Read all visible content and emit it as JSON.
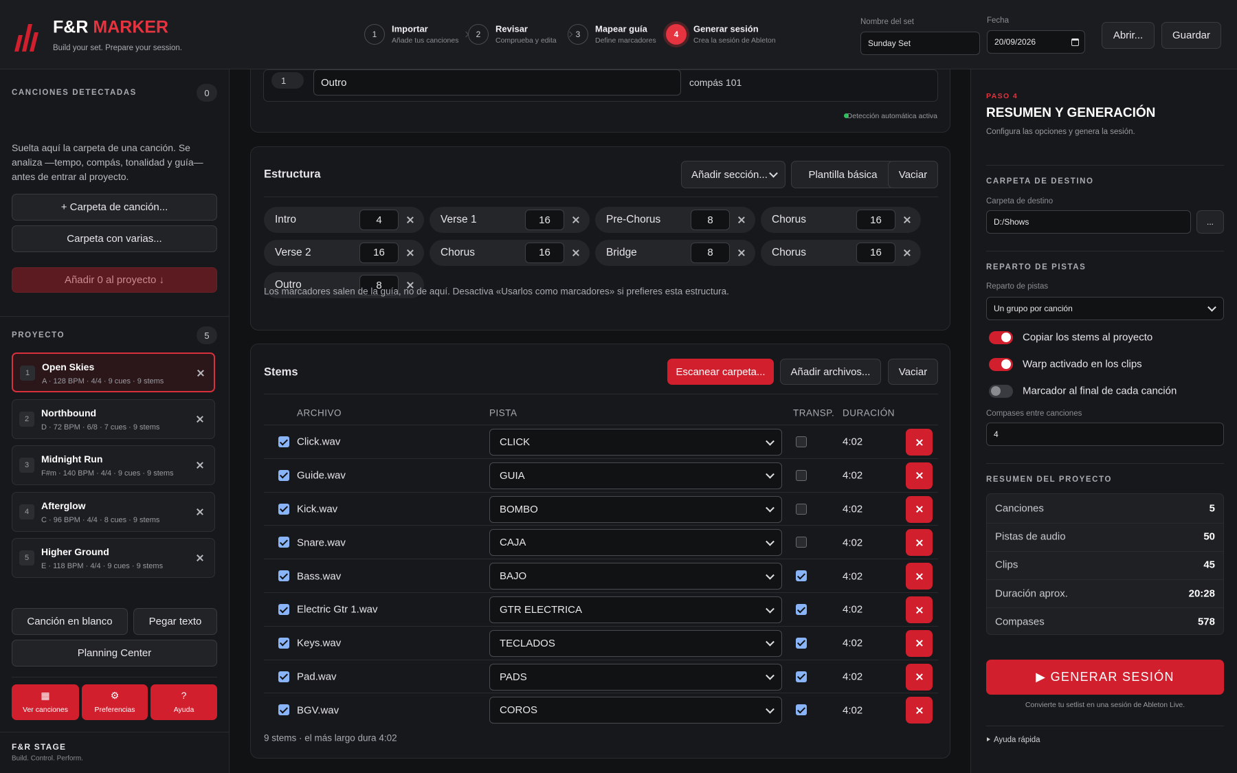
{
  "header": {
    "brand_a": "F&R",
    "brand_b": "MARKER",
    "tagline": "Build your set. Prepare your session.",
    "steps": [
      {
        "num": "1",
        "title": "Importar",
        "sub": "Añade tus canciones"
      },
      {
        "num": "2",
        "title": "Revisar",
        "sub": "Comprueba y edita"
      },
      {
        "num": "3",
        "title": "Mapear guía",
        "sub": "Define marcadores"
      },
      {
        "num": "4",
        "title": "Generar sesión",
        "sub": "Crea la sesión de Ableton"
      }
    ],
    "active_step": 3,
    "set_name_label": "Nombre del set",
    "set_name": "Sunday Set",
    "date_label": "Fecha",
    "date": "20/09/2026",
    "open": "Abrir...",
    "save": "Guardar"
  },
  "sidebar": {
    "detected_title": "CANCIONES DETECTADAS",
    "detected_count": "0",
    "drop_hint": "Suelta aquí la carpeta de una canción. Se analiza —tempo, compás, tonalidad y guía— antes de entrar al proyecto.",
    "btn_song_folder": "+ Carpeta de canción...",
    "btn_multi_folder": "Carpeta con varias...",
    "btn_add": "Añadir 0 al proyecto ↓",
    "project_title": "PROYECTO",
    "project_count": "5",
    "songs": [
      {
        "num": "1",
        "name": "Open Skies",
        "meta": "A · 128 BPM · 4/4 · 9 cues · 9 stems",
        "selected": true
      },
      {
        "num": "2",
        "name": "Northbound",
        "meta": "D · 72 BPM · 6/8 · 7 cues · 9 stems",
        "selected": false
      },
      {
        "num": "3",
        "name": "Midnight Run",
        "meta": "F#m · 140 BPM · 4/4 · 9 cues · 9 stems",
        "selected": false
      },
      {
        "num": "4",
        "name": "Afterglow",
        "meta": "C · 96 BPM · 4/4 · 8 cues · 9 stems",
        "selected": false
      },
      {
        "num": "5",
        "name": "Higher Ground",
        "meta": "E · 118 BPM · 4/4 · 9 cues · 9 stems",
        "selected": false
      }
    ],
    "btn_blank": "Canción en blanco",
    "btn_paste": "Pegar texto",
    "btn_planning": "Planning Center",
    "nav": [
      {
        "icon": "▦",
        "label": "Ver canciones"
      },
      {
        "icon": "⚙",
        "label": "Preferencias"
      },
      {
        "icon": "?",
        "label": "Ayuda"
      }
    ],
    "footer_title": "F&R STAGE",
    "footer_sub": "Build. Control. Perform."
  },
  "guide": {
    "row_num": "1",
    "row_name": "Outro",
    "row_bar": "compás 101",
    "auto": "Detección automática activa"
  },
  "structure": {
    "title": "Estructura",
    "add_section": "Añadir sección...",
    "template": "Plantilla básica",
    "clear": "Vaciar",
    "sections": [
      {
        "name": "Intro",
        "bars": 4
      },
      {
        "name": "Verse 1",
        "bars": 16
      },
      {
        "name": "Pre-Chorus",
        "bars": 8
      },
      {
        "name": "Chorus",
        "bars": 16
      },
      {
        "name": "Verse 2",
        "bars": 16
      },
      {
        "name": "Chorus",
        "bars": 16
      },
      {
        "name": "Bridge",
        "bars": 8
      },
      {
        "name": "Chorus",
        "bars": 16
      },
      {
        "name": "Outro",
        "bars": 8
      }
    ],
    "note": "Los marcadores salen de la guía, no de aquí. Desactiva «Usarlos como marcadores» si prefieres esta estructura."
  },
  "stems": {
    "title": "Stems",
    "scan": "Escanear carpeta...",
    "add": "Añadir archivos...",
    "clear": "Vaciar",
    "headers": [
      "ARCHIVO",
      "PISTA",
      "TRANSP.",
      "DURACIÓN"
    ],
    "rows": [
      {
        "file": "Click.wav",
        "track": "CLICK",
        "transp": false,
        "duration": "4:02"
      },
      {
        "file": "Guide.wav",
        "track": "GUIA",
        "transp": false,
        "duration": "4:02"
      },
      {
        "file": "Kick.wav",
        "track": "BOMBO",
        "transp": false,
        "duration": "4:02"
      },
      {
        "file": "Snare.wav",
        "track": "CAJA",
        "transp": false,
        "duration": "4:02"
      },
      {
        "file": "Bass.wav",
        "track": "BAJO",
        "transp": true,
        "duration": "4:02"
      },
      {
        "file": "Electric Gtr 1.wav",
        "track": "GTR ELECTRICA",
        "transp": true,
        "duration": "4:02"
      },
      {
        "file": "Keys.wav",
        "track": "TECLADOS",
        "transp": true,
        "duration": "4:02"
      },
      {
        "file": "Pad.wav",
        "track": "PADS",
        "transp": true,
        "duration": "4:02"
      },
      {
        "file": "BGV.wav",
        "track": "COROS",
        "transp": true,
        "duration": "4:02"
      }
    ],
    "footer": "9 stems · el más largo dura 4:02"
  },
  "summary": {
    "step": "PASO 4",
    "title": "RESUMEN Y GENERACIÓN",
    "subtitle": "Configura las opciones y genera la sesión.",
    "dest_title": "CARPETA DE DESTINO",
    "dest_label": "Carpeta de destino",
    "dest_value": "D:/Shows",
    "browse": "...",
    "tracks_title": "REPARTO DE PISTAS",
    "tracks_label": "Reparto de pistas",
    "tracks_value": "Un grupo por canción",
    "toggles": [
      {
        "label": "Copiar los stems al proyecto",
        "on": true
      },
      {
        "label": "Warp activado en los clips",
        "on": true
      },
      {
        "label": "Marcador al final de cada canción",
        "on": false
      }
    ],
    "gap_label": "Compases entre canciones",
    "gap_value": 4,
    "project_title": "RESUMEN DEL PROYECTO",
    "stats": [
      {
        "label": "Canciones",
        "value": 5
      },
      {
        "label": "Pistas de audio",
        "value": 50
      },
      {
        "label": "Clips",
        "value": 45
      },
      {
        "label": "Duración aprox.",
        "value": "20:28"
      },
      {
        "label": "Compases",
        "value": 578
      }
    ],
    "generate": "▶ GENERAR SESIÓN",
    "generate_note": "Convierte tu setlist en una sesión de Ableton Live.",
    "help": "Ayuda rápida"
  }
}
